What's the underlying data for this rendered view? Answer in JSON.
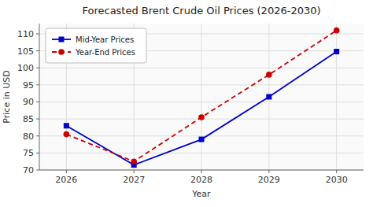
{
  "chart_data": {
    "type": "line",
    "title": "Forecasted Brent Crude Oil Prices (2026-2030)",
    "x_label": "Year",
    "y_label": "Price in USD",
    "x": [
      2026,
      2027,
      2028,
      2029,
      2030
    ],
    "series": [
      {
        "name": "Mid-Year Prices",
        "color": "#0000cc",
        "marker": "square",
        "line_style": "solid",
        "values": [
          83,
          71.5,
          79,
          91.5,
          104.8
        ]
      },
      {
        "name": "Year-End Prices",
        "color": "#cc0000",
        "marker": "circle",
        "line_style": "dashed",
        "values": [
          80.5,
          72.5,
          85.5,
          98,
          111
        ]
      }
    ],
    "xlim": [
      2025.6,
      2030.4
    ],
    "xticks": [
      2026,
      2027,
      2028,
      2029,
      2030
    ],
    "ylim": [
      70,
      113
    ],
    "yticks": [
      70,
      75,
      80,
      85,
      90,
      95,
      100,
      105,
      110
    ],
    "grid": true,
    "legend": "upper left"
  }
}
